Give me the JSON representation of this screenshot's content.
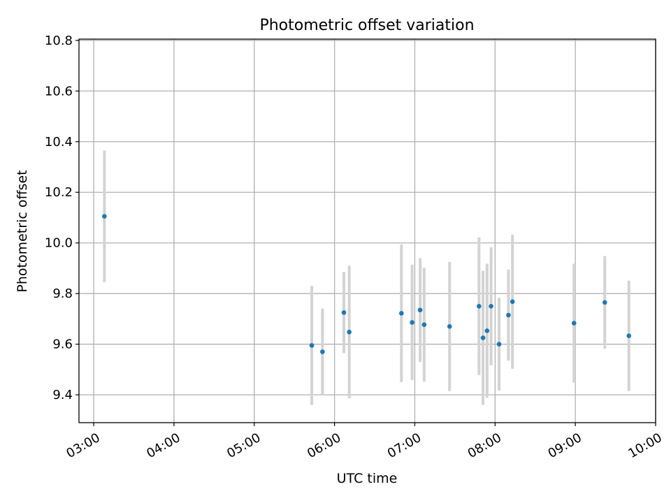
{
  "chart_data": {
    "type": "scatter",
    "title": "Photometric offset variation",
    "xlabel": "UTC time",
    "ylabel": "Photometric offset",
    "xlim": [
      "02:49",
      "10:00"
    ],
    "ylim": [
      9.29,
      10.805
    ],
    "grid": true,
    "x_ticks": [
      "03:00",
      "04:00",
      "05:00",
      "06:00",
      "07:00",
      "08:00",
      "09:00",
      "10:00"
    ],
    "y_ticks": [
      9.4,
      9.6,
      9.8,
      10.0,
      10.2,
      10.4,
      10.6,
      10.8
    ],
    "y_tick_labels": [
      "9.4",
      "9.6",
      "9.8",
      "10.0",
      "10.2",
      "10.4",
      "10.6",
      "10.8"
    ],
    "series": [
      {
        "marker_color": "#1f77b4",
        "errorbar_color": "#d3d3d3",
        "points": [
          {
            "x": "03:08",
            "y": 10.105,
            "yerr": 0.26
          },
          {
            "x": "05:43",
            "y": 9.595,
            "yerr": 0.235
          },
          {
            "x": "05:51",
            "y": 9.57,
            "yerr": 0.17
          },
          {
            "x": "06:07",
            "y": 9.725,
            "yerr": 0.16
          },
          {
            "x": "06:11",
            "y": 9.648,
            "yerr": 0.262
          },
          {
            "x": "06:50",
            "y": 9.722,
            "yerr": 0.272
          },
          {
            "x": "06:58",
            "y": 9.686,
            "yerr": 0.228
          },
          {
            "x": "07:04",
            "y": 9.735,
            "yerr": 0.205
          },
          {
            "x": "07:07",
            "y": 9.677,
            "yerr": 0.225
          },
          {
            "x": "07:26",
            "y": 9.67,
            "yerr": 0.255
          },
          {
            "x": "07:48",
            "y": 9.75,
            "yerr": 0.272
          },
          {
            "x": "07:51",
            "y": 9.625,
            "yerr": 0.265
          },
          {
            "x": "07:54",
            "y": 9.653,
            "yerr": 0.265
          },
          {
            "x": "07:57",
            "y": 9.75,
            "yerr": 0.233
          },
          {
            "x": "08:03",
            "y": 9.6,
            "yerr": 0.183
          },
          {
            "x": "08:10",
            "y": 9.715,
            "yerr": 0.18
          },
          {
            "x": "08:13",
            "y": 9.768,
            "yerr": 0.265
          },
          {
            "x": "08:59",
            "y": 9.683,
            "yerr": 0.235
          },
          {
            "x": "09:22",
            "y": 9.765,
            "yerr": 0.183
          },
          {
            "x": "09:40",
            "y": 9.633,
            "yerr": 0.218
          }
        ]
      }
    ]
  }
}
